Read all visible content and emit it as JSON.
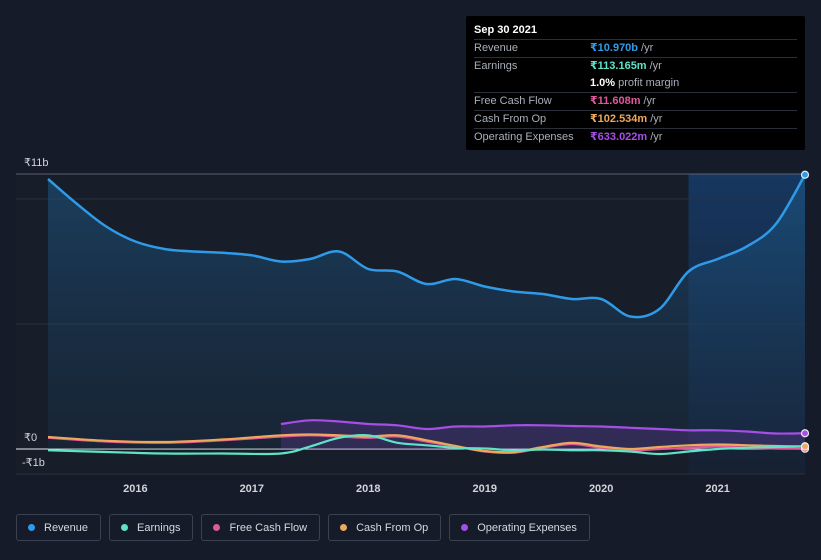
{
  "tooltip": {
    "date": "Sep 30 2021",
    "rows": [
      {
        "label": "Revenue",
        "value": "₹10.970b",
        "unit": "/yr",
        "color": "#2f9ae8"
      },
      {
        "label": "Earnings",
        "value": "₹113.165m",
        "unit": "/yr",
        "color": "#5fe3c7"
      },
      {
        "label": "",
        "value": "1.0%",
        "unit": "profit margin",
        "color": "#ffffff"
      },
      {
        "label": "Free Cash Flow",
        "value": "₹11.608m",
        "unit": "/yr",
        "color": "#e0589a"
      },
      {
        "label": "Cash From Op",
        "value": "₹102.534m",
        "unit": "/yr",
        "color": "#eea85a"
      },
      {
        "label": "Operating Expenses",
        "value": "₹633.022m",
        "unit": "/yr",
        "color": "#a64ee6"
      }
    ]
  },
  "legend": [
    {
      "label": "Revenue",
      "color": "#2f9ae8"
    },
    {
      "label": "Earnings",
      "color": "#5fe3c7"
    },
    {
      "label": "Free Cash Flow",
      "color": "#e0589a"
    },
    {
      "label": "Cash From Op",
      "color": "#eea85a"
    },
    {
      "label": "Operating Expenses",
      "color": "#a64ee6"
    }
  ],
  "chart_data": {
    "type": "line",
    "y_labels": [
      "₹11b",
      "₹0",
      "-₹1b"
    ],
    "ylim": [
      -1,
      11
    ],
    "xlim": [
      2015.25,
      2021.75
    ],
    "x_ticks": [
      2016,
      2017,
      2018,
      2019,
      2020,
      2021
    ],
    "x_tick_labels": [
      "2016",
      "2017",
      "2018",
      "2019",
      "2020",
      "2021"
    ],
    "highlight_from": 2020.75,
    "grid": true,
    "series": [
      {
        "name": "Revenue",
        "color": "#2f9ae8",
        "fill": true,
        "x": [
          2015.25,
          2015.5,
          2015.75,
          2016.0,
          2016.25,
          2016.5,
          2016.75,
          2017.0,
          2017.25,
          2017.5,
          2017.75,
          2018.0,
          2018.25,
          2018.5,
          2018.75,
          2019.0,
          2019.25,
          2019.5,
          2019.75,
          2020.0,
          2020.25,
          2020.5,
          2020.75,
          2021.0,
          2021.25,
          2021.5,
          2021.75
        ],
        "y": [
          10.8,
          9.8,
          8.9,
          8.3,
          8.0,
          7.9,
          7.85,
          7.75,
          7.5,
          7.6,
          7.9,
          7.2,
          7.1,
          6.6,
          6.8,
          6.5,
          6.3,
          6.2,
          6.0,
          6.0,
          5.3,
          5.6,
          7.1,
          7.6,
          8.1,
          9.0,
          10.97
        ]
      },
      {
        "name": "Earnings",
        "color": "#5fe3c7",
        "fill": false,
        "x": [
          2015.25,
          2015.75,
          2016.25,
          2016.75,
          2017.25,
          2017.5,
          2017.75,
          2018.0,
          2018.25,
          2018.5,
          2018.75,
          2019.0,
          2019.25,
          2019.5,
          2019.75,
          2020.0,
          2020.25,
          2020.5,
          2020.75,
          2021.0,
          2021.25,
          2021.5,
          2021.75
        ],
        "y": [
          -0.05,
          -0.12,
          -0.18,
          -0.18,
          -0.18,
          0.1,
          0.45,
          0.55,
          0.25,
          0.15,
          0.05,
          0.02,
          -0.05,
          -0.02,
          -0.05,
          -0.05,
          -0.1,
          -0.2,
          -0.1,
          0.0,
          0.05,
          0.08,
          0.11
        ]
      },
      {
        "name": "Free Cash Flow",
        "color": "#e0589a",
        "fill": false,
        "x": [
          2015.25,
          2015.75,
          2016.25,
          2016.75,
          2017.25,
          2017.5,
          2017.75,
          2018.0,
          2018.25,
          2018.5,
          2018.75,
          2019.0,
          2019.25,
          2019.5,
          2019.75,
          2020.0,
          2020.25,
          2020.5,
          2020.75,
          2021.0,
          2021.25,
          2021.5,
          2021.75
        ],
        "y": [
          0.45,
          0.3,
          0.25,
          0.35,
          0.5,
          0.55,
          0.5,
          0.45,
          0.5,
          0.3,
          0.1,
          -0.1,
          -0.15,
          0.05,
          0.2,
          0.05,
          -0.05,
          0.0,
          0.05,
          0.1,
          0.05,
          0.02,
          0.01
        ]
      },
      {
        "name": "Cash From Op",
        "color": "#eea85a",
        "fill": false,
        "x": [
          2015.25,
          2015.75,
          2016.25,
          2016.75,
          2017.25,
          2017.5,
          2017.75,
          2018.0,
          2018.25,
          2018.5,
          2018.75,
          2019.0,
          2019.25,
          2019.5,
          2019.75,
          2020.0,
          2020.25,
          2020.5,
          2020.75,
          2021.0,
          2021.25,
          2021.5,
          2021.75
        ],
        "y": [
          0.48,
          0.33,
          0.28,
          0.38,
          0.55,
          0.58,
          0.55,
          0.5,
          0.55,
          0.35,
          0.12,
          -0.08,
          -0.12,
          0.08,
          0.25,
          0.1,
          0.0,
          0.08,
          0.15,
          0.18,
          0.15,
          0.12,
          0.1
        ]
      },
      {
        "name": "Operating Expenses",
        "color": "#a64ee6",
        "fill": true,
        "x": [
          2017.25,
          2017.5,
          2017.75,
          2018.0,
          2018.25,
          2018.5,
          2018.75,
          2019.0,
          2019.25,
          2019.5,
          2019.75,
          2020.0,
          2020.25,
          2020.5,
          2020.75,
          2021.0,
          2021.25,
          2021.5,
          2021.75
        ],
        "y": [
          1.0,
          1.15,
          1.1,
          1.0,
          0.95,
          0.8,
          0.9,
          0.9,
          0.95,
          0.95,
          0.92,
          0.9,
          0.85,
          0.8,
          0.75,
          0.75,
          0.7,
          0.62,
          0.63
        ]
      }
    ]
  }
}
